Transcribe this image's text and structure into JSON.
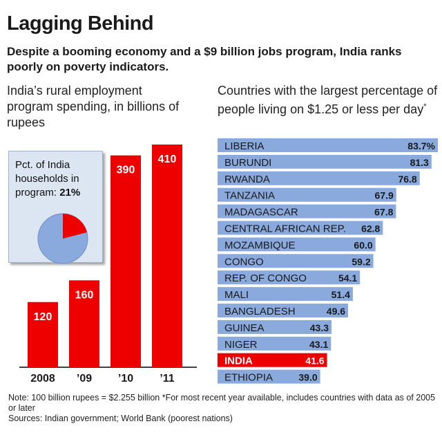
{
  "title": "Lagging Behind",
  "subtitle": "Despite a booming economy and a $9 billion jobs program, India ranks poorly on poverty indicators.",
  "colors": {
    "bar_red": "#ef0000",
    "bar_blue": "#8aa9dc",
    "inset_bg": "#dce6f2",
    "pie_blue": "#8aa9dc",
    "pie_red": "#ef0000"
  },
  "inset": {
    "label": "Pct. of India households in program:",
    "value_label": "21%",
    "value": 21
  },
  "chart_data": [
    {
      "type": "bar",
      "title": "India’s rural employment program spending, in billions of rupees",
      "categories": [
        "2008",
        "’09",
        "’10",
        "’11"
      ],
      "values": [
        120,
        160,
        390,
        410
      ],
      "value_labels": [
        "120",
        "160",
        "390",
        "410"
      ],
      "ylim": [
        0,
        410
      ],
      "grid": false
    },
    {
      "type": "bar",
      "orientation": "horizontal",
      "title": "Countries with the largest percentage of people living on $1.25 or less per day",
      "title_mark": "*",
      "categories": [
        "LIBERIA",
        "BURUNDI",
        "RWANDA",
        "TANZANIA",
        "MADAGASCAR",
        "CENTRAL AFRICAN REP.",
        "MOZAMBIQUE",
        "CONGO",
        "REP. OF CONGO",
        "MALI",
        "BANGLADESH",
        "GUINEA",
        "NIGER",
        "INDIA",
        "ETHIOPIA"
      ],
      "values": [
        83.7,
        81.3,
        76.8,
        67.9,
        67.8,
        62.8,
        60.0,
        59.2,
        54.1,
        51.4,
        49.6,
        43.3,
        43.1,
        41.6,
        39.0
      ],
      "value_labels": [
        "83.7%",
        "81.3",
        "76.8",
        "67.9",
        "67.8",
        "62.8",
        "60.0",
        "59.2",
        "54.1",
        "51.4",
        "49.6",
        "43.3",
        "43.1",
        "41.6",
        "39.0"
      ],
      "highlight": "INDIA",
      "xlim": [
        0,
        83.7
      ],
      "grid": false
    }
  ],
  "notes": {
    "line1": "Note: 100 billion rupees = $2.255 billion *For most recent year available, includes countries with data as of 2005 or later",
    "line2": "Sources: Indian government; World Bank (poorest nations)"
  }
}
